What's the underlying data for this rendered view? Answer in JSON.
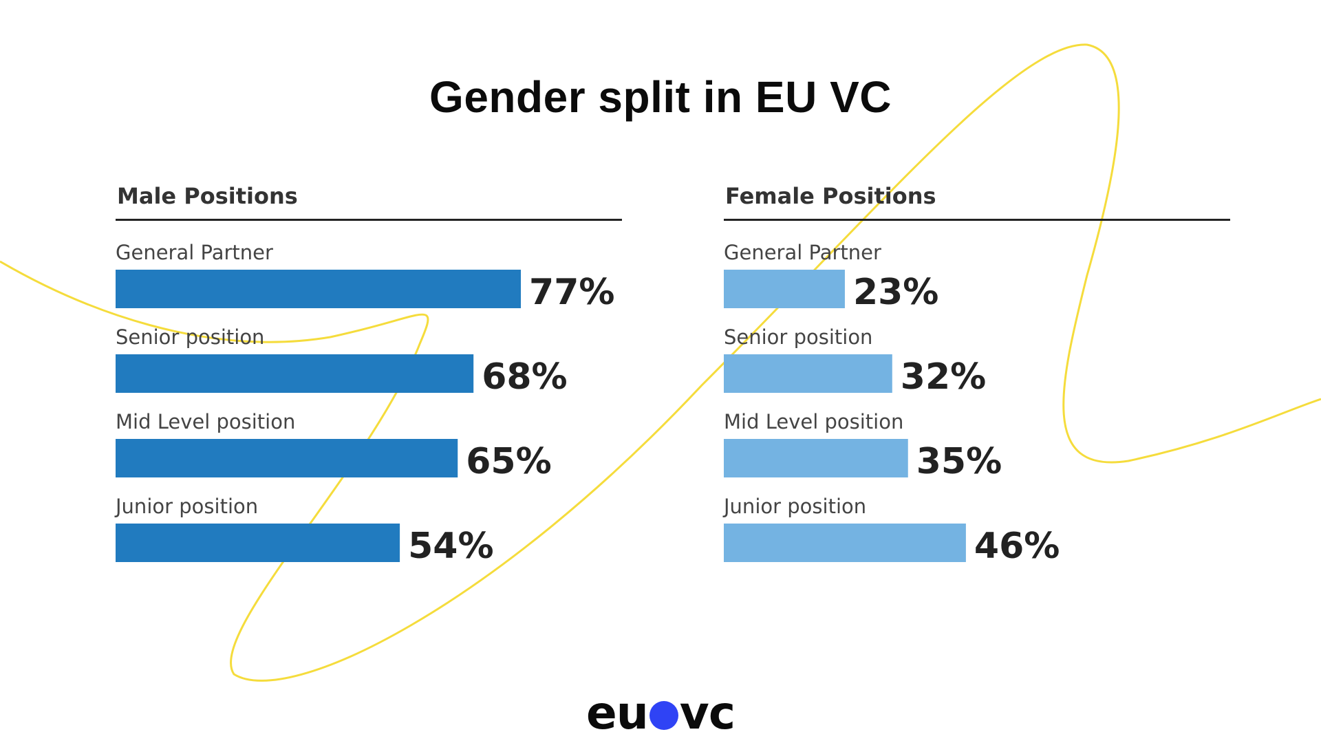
{
  "title": "Gender split in EU VC",
  "logo": {
    "left": "eu",
    "right": "vc",
    "dot_color": "#2f43f5"
  },
  "colors": {
    "male_bar": "#217bbf",
    "female_bar": "#74b3e2",
    "accent_curve": "#f5dc3c"
  },
  "chart_data": [
    {
      "type": "bar",
      "title": "Male Positions",
      "orientation": "horizontal",
      "categories": [
        "General Partner",
        "Senior position",
        "Mid Level position",
        "Junior position"
      ],
      "values": [
        77,
        68,
        65,
        54
      ],
      "value_labels": [
        "77%",
        "68%",
        "65%",
        "54%"
      ],
      "unit": "%",
      "xlim": [
        0,
        100
      ],
      "color": "#217bbf",
      "grid": false
    },
    {
      "type": "bar",
      "title": "Female Positions",
      "orientation": "horizontal",
      "categories": [
        "General Partner",
        "Senior position",
        "Mid Level position",
        "Junior position"
      ],
      "values": [
        23,
        32,
        35,
        46
      ],
      "value_labels": [
        "23%",
        "32%",
        "35%",
        "46%"
      ],
      "unit": "%",
      "xlim": [
        0,
        100
      ],
      "color": "#74b3e2",
      "grid": false
    }
  ]
}
